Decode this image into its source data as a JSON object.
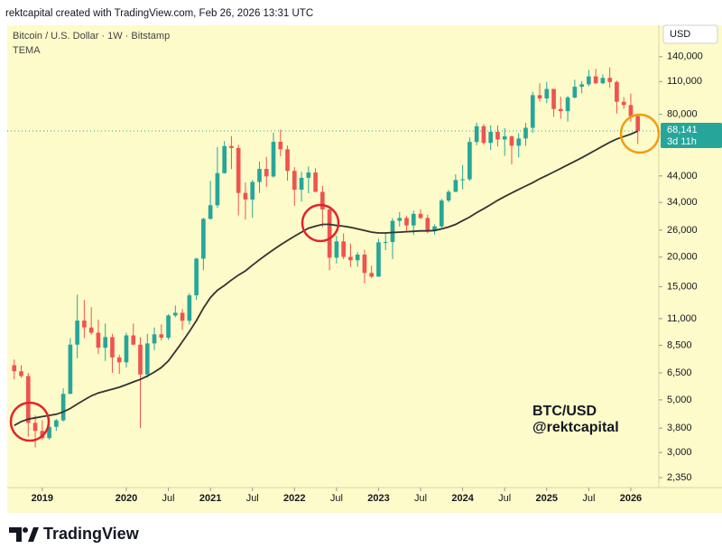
{
  "chart_data": {
    "type": "candlestick",
    "credit": "rektcapital created with TradingView.com, Feb 26, 2026 13:31 UTC",
    "title": "Bitcoin / U.S. Dollar · 1W · Bitstamp",
    "currency": "USD",
    "annotations": [
      "BTC/USD",
      "@rektcapital"
    ],
    "brand": "TradingView",
    "countdown": "3d 11h",
    "log_scale": true,
    "up_color": "#26a69a",
    "down_color": "#ef5350",
    "x": [
      "2018-09",
      "2018-10",
      "2018-11",
      "2018-12",
      "2019-01",
      "2019-02",
      "2019-03",
      "2019-04",
      "2019-05",
      "2019-06",
      "2019-07",
      "2019-08",
      "2019-09",
      "2019-10",
      "2019-11",
      "2019-12",
      "2020-01",
      "2020-02",
      "2020-03",
      "2020-04",
      "2020-05",
      "2020-06",
      "2020-07",
      "2020-08",
      "2020-09",
      "2020-10",
      "2020-11",
      "2020-12",
      "2021-01",
      "2021-02",
      "2021-03",
      "2021-04",
      "2021-05",
      "2021-06",
      "2021-07",
      "2021-08",
      "2021-09",
      "2021-10",
      "2021-11",
      "2021-12",
      "2022-01",
      "2022-02",
      "2022-03",
      "2022-04",
      "2022-05",
      "2022-06",
      "2022-07",
      "2022-08",
      "2022-09",
      "2022-10",
      "2022-11",
      "2022-12",
      "2023-01",
      "2023-02",
      "2023-03",
      "2023-04",
      "2023-05",
      "2023-06",
      "2023-07",
      "2023-08",
      "2023-09",
      "2023-10",
      "2023-11",
      "2023-12",
      "2024-01",
      "2024-02",
      "2024-03",
      "2024-04",
      "2024-05",
      "2024-06",
      "2024-07",
      "2024-08",
      "2024-09",
      "2024-10",
      "2024-11",
      "2024-12",
      "2025-01",
      "2025-02",
      "2025-03",
      "2025-04",
      "2025-05",
      "2025-06",
      "2025-07",
      "2025-08",
      "2025-09",
      "2025-10",
      "2025-11",
      "2025-12",
      "2026-01",
      "2026-02"
    ],
    "open": [
      7000,
      6600,
      6300,
      4000,
      3700,
      3450,
      3850,
      4100,
      5300,
      8550,
      10800,
      10100,
      9600,
      8300,
      9200,
      7550,
      7200,
      9350,
      8550,
      6400,
      8650,
      9450,
      9150,
      11350,
      11650,
      10780,
      13800,
      19700,
      29000,
      33100,
      45200,
      58800,
      57700,
      37300,
      35000,
      41500,
      47100,
      43800,
      61300,
      57000,
      46200,
      38500,
      43200,
      45500,
      37700,
      31800,
      19900,
      23300,
      20050,
      19400,
      20500,
      17150,
      16550,
      23100,
      23150,
      28450,
      29250,
      27200,
      30450,
      29250,
      25950,
      26950,
      34650,
      37700,
      42300,
      42600,
      61200,
      71300,
      60650,
      67500,
      62700,
      64600,
      59000,
      63300,
      70200,
      96400,
      93400,
      102400,
      84300,
      82500,
      94200,
      104600,
      107100,
      115700,
      108200,
      114000,
      109500,
      90400,
      87600,
      78600
    ],
    "high": [
      7400,
      7000,
      6500,
      4300,
      4100,
      4200,
      4150,
      5600,
      9100,
      13900,
      13200,
      12300,
      10900,
      10500,
      9500,
      7750,
      9600,
      10500,
      9200,
      9500,
      10100,
      10400,
      11500,
      12500,
      12100,
      14100,
      19900,
      29300,
      41900,
      58300,
      61700,
      64800,
      59500,
      41300,
      42300,
      50500,
      52900,
      67000,
      69000,
      59100,
      47900,
      45800,
      48200,
      47400,
      40000,
      31900,
      24600,
      25200,
      22800,
      21000,
      21500,
      18400,
      23900,
      25300,
      29200,
      31000,
      29800,
      31400,
      31800,
      30200,
      27500,
      35200,
      38400,
      44700,
      48900,
      64000,
      73800,
      72800,
      71900,
      71900,
      70000,
      65100,
      66500,
      73600,
      99600,
      108300,
      109600,
      102500,
      95000,
      95800,
      111900,
      110500,
      123200,
      124400,
      117900,
      126200,
      111000,
      94600,
      97900,
      80000
    ],
    "low": [
      6100,
      6200,
      3500,
      3150,
      3400,
      3400,
      3700,
      4050,
      5300,
      7500,
      9100,
      9400,
      7800,
      7300,
      6500,
      6430,
      6850,
      8500,
      3800,
      6200,
      8100,
      8900,
      8950,
      11150,
      9850,
      10400,
      13200,
      17600,
      28800,
      32300,
      45000,
      47000,
      30000,
      28800,
      29300,
      37300,
      39600,
      43300,
      53300,
      42000,
      32900,
      34300,
      37200,
      37600,
      26700,
      17600,
      18800,
      19600,
      18200,
      18200,
      15500,
      16300,
      16500,
      21400,
      19600,
      26900,
      25800,
      24800,
      28900,
      25200,
      24900,
      26600,
      34100,
      37600,
      38600,
      41900,
      59300,
      59600,
      56600,
      58600,
      53500,
      49200,
      52600,
      58900,
      66800,
      90500,
      89200,
      78200,
      76600,
      74500,
      93400,
      98200,
      105100,
      107300,
      107300,
      103500,
      80600,
      84400,
      74500,
      60000
    ],
    "close": [
      6600,
      6300,
      4000,
      3700,
      3450,
      3850,
      4100,
      5300,
      8550,
      10800,
      10100,
      9600,
      8300,
      9200,
      7550,
      7200,
      9350,
      8550,
      6400,
      8650,
      9450,
      9150,
      11350,
      11650,
      10780,
      13800,
      19700,
      29000,
      33100,
      45200,
      58800,
      57700,
      37300,
      35000,
      41500,
      47100,
      43800,
      61300,
      57000,
      46200,
      38500,
      43200,
      45500,
      37700,
      31800,
      19900,
      23300,
      20050,
      19400,
      20500,
      17150,
      16550,
      23100,
      23150,
      28450,
      29250,
      27200,
      30450,
      29250,
      25950,
      26950,
      34650,
      37700,
      42300,
      42600,
      61200,
      71300,
      60650,
      67500,
      62700,
      64600,
      59000,
      63300,
      70200,
      96400,
      93400,
      102400,
      84300,
      82500,
      94200,
      104600,
      107100,
      115700,
      108200,
      114000,
      109500,
      90400,
      87600,
      78600,
      68141
    ],
    "series": [
      {
        "name": "TEMA",
        "color": "#333333",
        "values": [
          3900,
          4050,
          4150,
          4200,
          4250,
          4300,
          4350,
          4450,
          4600,
          4800,
          5000,
          5200,
          5350,
          5450,
          5550,
          5650,
          5800,
          5950,
          6100,
          6300,
          6550,
          6850,
          7300,
          8000,
          8800,
          9700,
          10800,
          12200,
          13500,
          14500,
          15200,
          16000,
          16800,
          17500,
          18500,
          19500,
          20500,
          21500,
          22500,
          23500,
          24500,
          25500,
          26500,
          27000,
          27500,
          27500,
          27200,
          27000,
          26700,
          26300,
          25900,
          25500,
          25300,
          25300,
          25400,
          25500,
          25600,
          25700,
          25800,
          25800,
          25900,
          26300,
          26800,
          27500,
          28500,
          29500,
          30800,
          32000,
          33300,
          34700,
          36000,
          37300,
          38600,
          39900,
          41200,
          42800,
          44200,
          45700,
          47300,
          49000,
          50700,
          52500,
          54500,
          56600,
          58800,
          61000,
          63000,
          64500,
          66000,
          68000
        ]
      }
    ],
    "last_price": {
      "value": 68141,
      "label": "68,141"
    },
    "xlim": [
      "2018-08",
      "2026-05"
    ],
    "xticks": [
      {
        "value": "2019-01",
        "label": "2019"
      },
      {
        "value": "2020-01",
        "label": "2020"
      },
      {
        "value": "2020-07",
        "label": "Jul"
      },
      {
        "value": "2021-01",
        "label": "2021"
      },
      {
        "value": "2021-07",
        "label": "Jul"
      },
      {
        "value": "2022-01",
        "label": "2022"
      },
      {
        "value": "2022-07",
        "label": "Jul"
      },
      {
        "value": "2023-01",
        "label": "2023"
      },
      {
        "value": "2023-07",
        "label": "Jul"
      },
      {
        "value": "2024-01",
        "label": "2024"
      },
      {
        "value": "2024-07",
        "label": "Jul"
      },
      {
        "value": "2025-01",
        "label": "2025"
      },
      {
        "value": "2025-07",
        "label": "Jul"
      },
      {
        "value": "2026-01",
        "label": "2026"
      }
    ],
    "ylim": [
      2134,
      190000
    ],
    "yticks": [
      {
        "value": 140000,
        "label": "140,000"
      },
      {
        "value": 110000,
        "label": "110,000"
      },
      {
        "value": 80000,
        "label": "80,000"
      },
      {
        "value": 44000,
        "label": "44,000"
      },
      {
        "value": 34000,
        "label": "34,000"
      },
      {
        "value": 26000,
        "label": "26,000"
      },
      {
        "value": 20000,
        "label": "20,000"
      },
      {
        "value": 15000,
        "label": "15,000"
      },
      {
        "value": 11000,
        "label": "11,000"
      },
      {
        "value": 8500,
        "label": "8,500"
      },
      {
        "value": 6500,
        "label": "6,500"
      },
      {
        "value": 5000,
        "label": "5,000"
      },
      {
        "value": 3800,
        "label": "3,800"
      },
      {
        "value": 3000,
        "label": "3,000"
      },
      {
        "value": 2350,
        "label": "2,350"
      }
    ]
  }
}
